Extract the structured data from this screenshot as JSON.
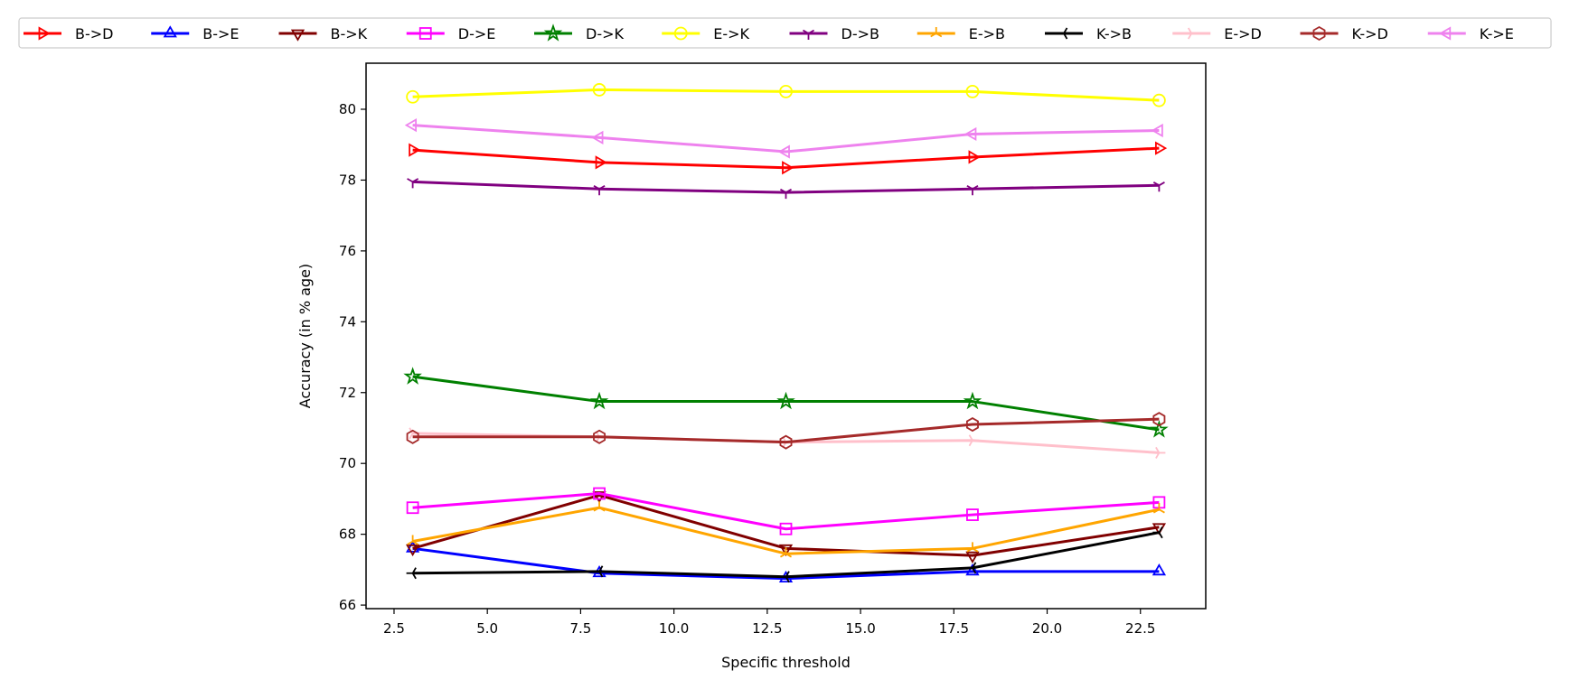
{
  "chart_data": {
    "type": "line",
    "xlabel": "Specific threshold",
    "ylabel": "Accuracy (in % age)",
    "xlim": [
      1.75,
      24.25
    ],
    "ylim": [
      65.9,
      81.3
    ],
    "xticks": [
      2.5,
      5.0,
      7.5,
      10.0,
      12.5,
      15.0,
      17.5,
      20.0,
      22.5
    ],
    "yticks": [
      66,
      68,
      70,
      72,
      74,
      76,
      78,
      80
    ],
    "grid": false,
    "legend_position": "top",
    "x": [
      3,
      8,
      13,
      18,
      23
    ],
    "series": [
      {
        "name": "B->D",
        "color": "#ff0000",
        "marker": "triangle-right",
        "values": [
          78.85,
          78.5,
          78.35,
          78.65,
          78.9
        ]
      },
      {
        "name": "B->E",
        "color": "#0000ff",
        "marker": "triangle-up",
        "values": [
          67.6,
          66.9,
          66.75,
          66.95,
          66.95
        ]
      },
      {
        "name": "B->K",
        "color": "#800000",
        "marker": "triangle-down",
        "values": [
          67.6,
          69.1,
          67.6,
          67.4,
          68.2
        ]
      },
      {
        "name": "D->E",
        "color": "#ff00ff",
        "marker": "square",
        "values": [
          68.75,
          69.15,
          68.15,
          68.55,
          68.9
        ]
      },
      {
        "name": "D->K",
        "color": "#008000",
        "marker": "star",
        "values": [
          72.45,
          71.75,
          71.75,
          71.75,
          70.95
        ]
      },
      {
        "name": "E->K",
        "color": "#ffff00",
        "marker": "circle",
        "values": [
          80.35,
          80.55,
          80.5,
          80.5,
          80.25
        ]
      },
      {
        "name": "D->B",
        "color": "#800080",
        "marker": "tri-down",
        "values": [
          77.95,
          77.75,
          77.65,
          77.75,
          77.85
        ]
      },
      {
        "name": "E->B",
        "color": "#ffa500",
        "marker": "tri-up",
        "values": [
          67.8,
          68.75,
          67.45,
          67.6,
          68.7
        ]
      },
      {
        "name": "K->B",
        "color": "#000000",
        "marker": "tri-left",
        "values": [
          66.9,
          66.95,
          66.8,
          67.05,
          68.05
        ]
      },
      {
        "name": "E->D",
        "color": "#ffc0cb",
        "marker": "tri-right",
        "values": [
          70.85,
          70.75,
          70.6,
          70.65,
          70.3
        ]
      },
      {
        "name": "K->D",
        "color": "#a52a2a",
        "marker": "hexagon",
        "values": [
          70.75,
          70.75,
          70.6,
          71.1,
          71.25
        ]
      },
      {
        "name": "K->E",
        "color": "#ee82ee",
        "marker": "triangle-left",
        "values": [
          79.55,
          79.2,
          78.8,
          79.3,
          79.4
        ]
      }
    ]
  }
}
